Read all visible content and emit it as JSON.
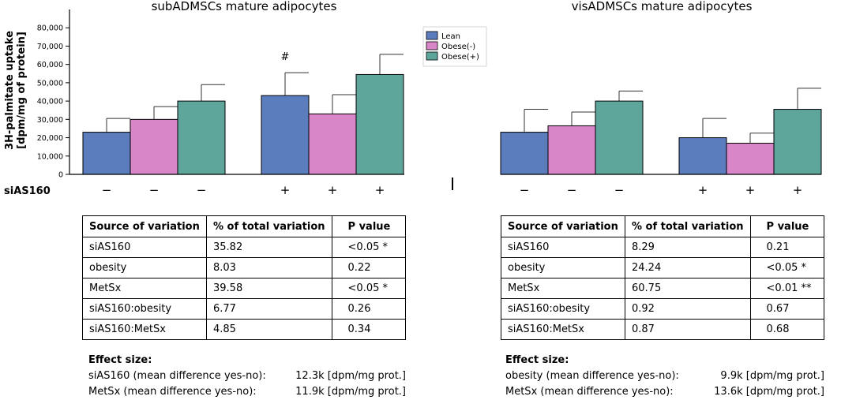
{
  "chart_data": {
    "type": "bar",
    "ylabel_line1": "3H-palmitate uptake",
    "ylabel_line2": "[dpm/mg of protein]",
    "ylim": [
      0,
      90000
    ],
    "yticks": [
      0,
      10000,
      20000,
      30000,
      40000,
      50000,
      60000,
      70000,
      80000
    ],
    "ytick_labels": [
      "0",
      "10,000",
      "20,000",
      "30,000",
      "40,000",
      "50,000",
      "60,000",
      "70,000",
      "80,000"
    ],
    "legend": [
      {
        "name": "Lean",
        "color": "#5b7dbd"
      },
      {
        "name": "Obese(-)",
        "color": "#d886c8"
      },
      {
        "name": "Obese(+)",
        "color": "#5ea59c"
      }
    ],
    "row_label": "siAS160",
    "panels": [
      {
        "title": "subADMSCs mature adipocytes",
        "groups": [
          {
            "siAS160": "−",
            "values": [
              23000,
              30000,
              40000
            ],
            "errors": [
              7500,
              7000,
              9000
            ],
            "annotation": ""
          },
          {
            "siAS160": "+",
            "values": [
              43000,
              33000,
              54500
            ],
            "errors": [
              12500,
              10500,
              11000
            ],
            "annotation": "#"
          }
        ]
      },
      {
        "title": "visADMSCs mature adipocytes",
        "groups": [
          {
            "siAS160": "−",
            "values": [
              23000,
              26500,
              40000
            ],
            "errors": [
              12500,
              7500,
              5500
            ],
            "annotation": ""
          },
          {
            "siAS160": "+",
            "values": [
              20000,
              17000,
              35500
            ],
            "errors": [
              10500,
              5500,
              11500
            ],
            "annotation": ""
          }
        ]
      }
    ]
  },
  "tables": [
    {
      "headers": [
        "Source of variation",
        "% of total variation",
        "P value"
      ],
      "rows": [
        [
          "siAS160",
          "35.82",
          "<0.05 *"
        ],
        [
          "obesity",
          "8.03",
          "0.22"
        ],
        [
          "MetSx",
          "39.58",
          "<0.05 *"
        ],
        [
          "siAS160:obesity",
          "6.77",
          "0.26"
        ],
        [
          "siAS160:MetSx",
          "4.85",
          "0.34"
        ]
      ],
      "effect_title": "Effect size:",
      "effects": [
        {
          "label": "siAS160 (mean difference yes-no):",
          "value": "12.3k [dpm/mg prot.]"
        },
        {
          "label": "MetSx (mean difference yes-no):",
          "value": "11.9k [dpm/mg prot.]"
        }
      ]
    },
    {
      "headers": [
        "Source of variation",
        "% of total variation",
        "P value"
      ],
      "rows": [
        [
          "siAS160",
          "8.29",
          "0.21"
        ],
        [
          "obesity",
          "24.24",
          "<0.05 *"
        ],
        [
          "MetSx",
          "60.75",
          "<0.01 **"
        ],
        [
          "siAS160:obesity",
          "0.92",
          "0.67"
        ],
        [
          "siAS160:MetSx",
          "0.87",
          "0.68"
        ]
      ],
      "effect_title": "Effect size:",
      "effects": [
        {
          "label": "obesity (mean difference yes-no):",
          "value": "9.9k [dpm/mg prot.]"
        },
        {
          "label": "MetSx (mean difference yes-no):",
          "value": "13.6k [dpm/mg prot.]"
        }
      ]
    }
  ]
}
